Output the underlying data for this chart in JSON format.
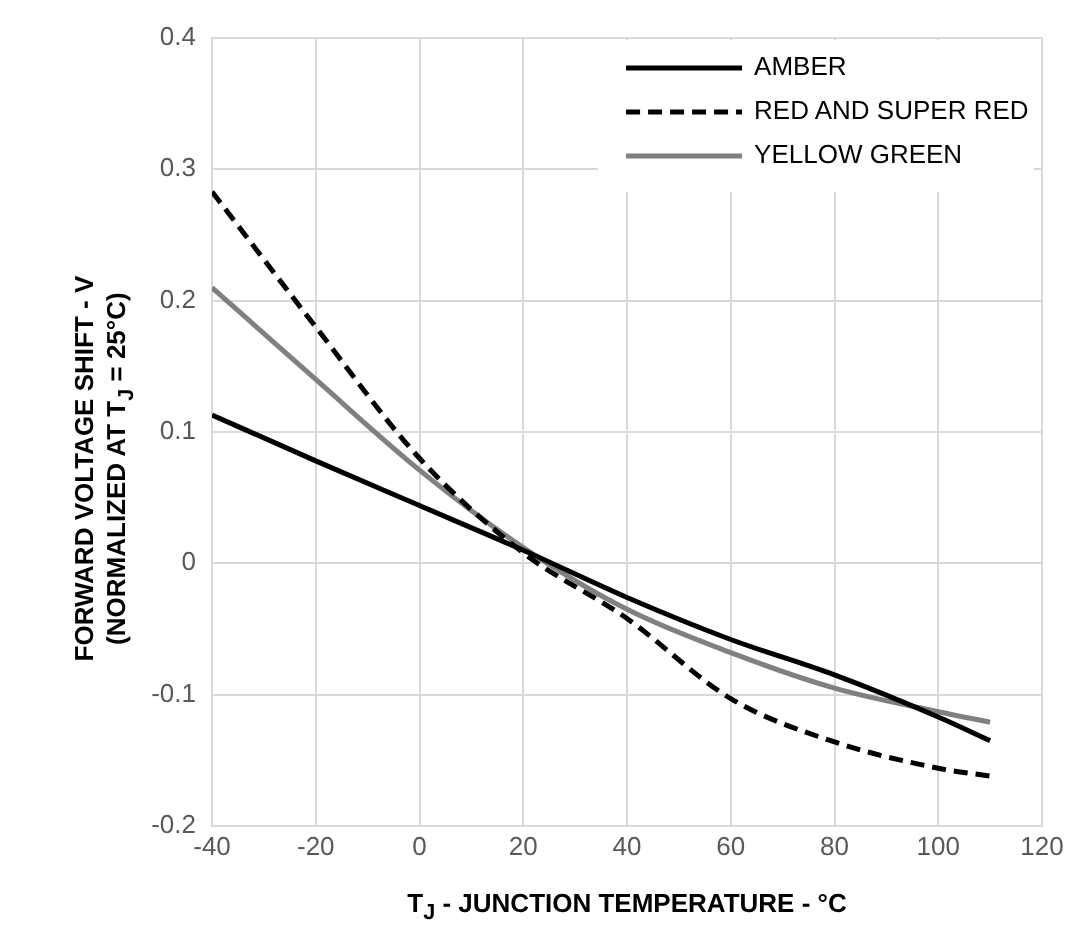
{
  "chart_data": {
    "type": "line",
    "xlabel": "T$_{J}$ - JUNCTION TEMPERATURE - °C",
    "ylabel": "FORWARD VOLTAGE SHIFT - V\n(NORMALIZED AT T$_{J}$ = 25°C)",
    "x": [
      -40,
      -20,
      0,
      20,
      40,
      60,
      80,
      100,
      110
    ],
    "series": [
      {
        "name": "AMBER",
        "color": "#000000",
        "line_style": "solid",
        "values": [
          0.113,
          0.078,
          0.044,
          0.01,
          -0.026,
          -0.058,
          -0.085,
          -0.117,
          -0.135
        ]
      },
      {
        "name": "RED AND SUPER RED",
        "color": "#000000",
        "line_style": "dashed",
        "values": [
          0.283,
          0.18,
          0.08,
          0.008,
          -0.042,
          -0.103,
          -0.136,
          -0.156,
          -0.162
        ]
      },
      {
        "name": "YELLOW GREEN",
        "color": "#808080",
        "line_style": "solid",
        "values": [
          0.21,
          0.14,
          0.071,
          0.012,
          -0.035,
          -0.068,
          -0.095,
          -0.113,
          -0.121
        ]
      }
    ],
    "xlim": [
      -40,
      120
    ],
    "xticks": [
      -40,
      -20,
      0,
      20,
      40,
      60,
      80,
      100,
      120
    ],
    "ylim": [
      -0.2,
      0.4
    ],
    "yticks": [
      -0.2,
      -0.1,
      0,
      0.1,
      0.2,
      0.3,
      0.4
    ],
    "grid": true,
    "legend": "top right",
    "marker": "none"
  }
}
